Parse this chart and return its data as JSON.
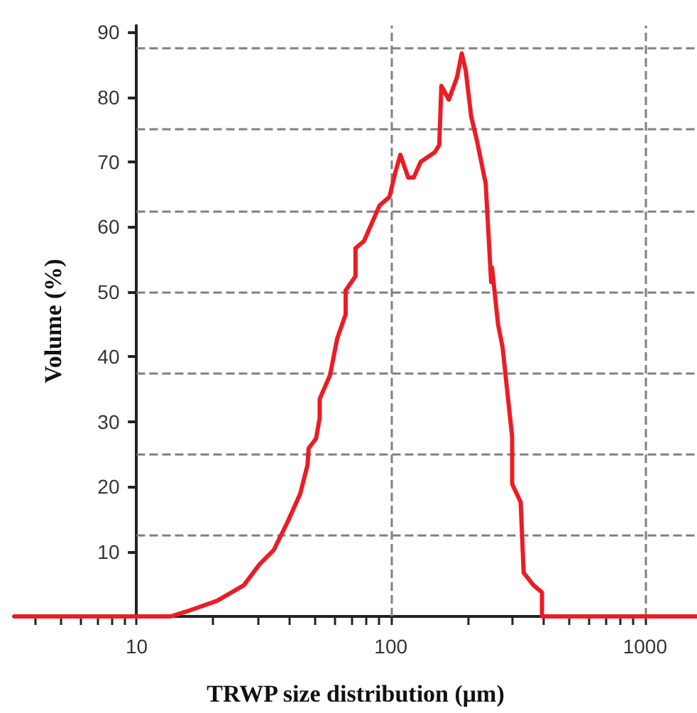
{
  "chart_data": {
    "type": "line",
    "xlabel": "TRWP size distribution (μm)",
    "ylabel": "Volume (%)",
    "x": [
      3.3,
      13.6,
      16.1,
      20.7,
      26.4,
      30.4,
      34.6,
      39.3,
      44,
      47,
      47.5,
      50.8,
      52.5,
      52.5,
      57.7,
      61.5,
      66.4,
      66.4,
      72.6,
      72.6,
      78.4,
      90.3,
      98.7,
      104,
      109,
      117,
      123,
      131,
      149,
      155,
      158,
      169,
      182,
      190,
      197,
      207,
      218,
      236,
      248,
      250,
      264,
      275,
      300,
      300,
      324,
      333,
      364,
      393,
      393,
      1600
    ],
    "series": [
      {
        "color": "#ec1c24",
        "values": [
          0,
          0,
          0.9,
          2.4,
          4.8,
          8,
          10.2,
          14.6,
          18.9,
          23.3,
          25.9,
          27.4,
          30.6,
          33.5,
          37.2,
          42.8,
          46.5,
          50.2,
          52.4,
          56.7,
          57.8,
          63.3,
          64.6,
          68.3,
          71.1,
          67.6,
          67.6,
          70,
          71.5,
          72.6,
          81.7,
          79.6,
          83,
          86.7,
          84.1,
          77,
          73.3,
          66.7,
          51.5,
          53.7,
          45,
          41.5,
          27.6,
          20.4,
          17.6,
          6.7,
          4.8,
          3.7,
          0,
          0
        ]
      }
    ],
    "xlim": [
      3.3,
      1600
    ],
    "log": "x",
    "xticks": [
      {
        "value": 4,
        "label": null
      },
      {
        "value": 5,
        "label": null
      },
      {
        "value": 6,
        "label": null
      },
      {
        "value": 7,
        "label": null
      },
      {
        "value": 8,
        "label": null
      },
      {
        "value": 9,
        "label": null
      },
      10,
      {
        "value": 20,
        "label": null
      },
      {
        "value": 30,
        "label": null
      },
      {
        "value": 40,
        "label": null
      },
      {
        "value": 50,
        "label": null
      },
      {
        "value": 60,
        "label": null
      },
      {
        "value": 70,
        "label": null
      },
      {
        "value": 80,
        "label": null
      },
      {
        "value": 90,
        "label": null
      },
      100,
      {
        "value": 200,
        "label": null
      },
      {
        "value": 300,
        "label": null
      },
      {
        "value": 400,
        "label": null
      },
      {
        "value": 500,
        "label": null
      },
      {
        "value": 600,
        "label": null
      },
      {
        "value": 700,
        "label": null
      },
      {
        "value": 800,
        "label": null
      },
      {
        "value": 900,
        "label": null
      },
      1000
    ],
    "ylim": [
      0,
      91
    ],
    "yticks": [
      10,
      20,
      30,
      40,
      50,
      60,
      70,
      80,
      90
    ],
    "grid": "x",
    "marker": "none",
    "line_style": "solid",
    "ref_lines": [
      {
        "axis": "y",
        "value": 12.5,
        "color": "#808080",
        "line_style": "dashed"
      },
      {
        "axis": "y",
        "value": 25,
        "color": "#808080",
        "line_style": "dashed"
      },
      {
        "axis": "y",
        "value": 37.5,
        "color": "#808080",
        "line_style": "dashed"
      },
      {
        "axis": "y",
        "value": 50,
        "color": "#808080",
        "line_style": "dashed"
      },
      {
        "axis": "y",
        "value": 62.5,
        "color": "#808080",
        "line_style": "dashed"
      },
      {
        "axis": "y",
        "value": 75,
        "color": "#808080",
        "line_style": "dashed"
      },
      {
        "axis": "y",
        "value": 87.5,
        "color": "#808080",
        "line_style": "dashed"
      }
    ]
  }
}
